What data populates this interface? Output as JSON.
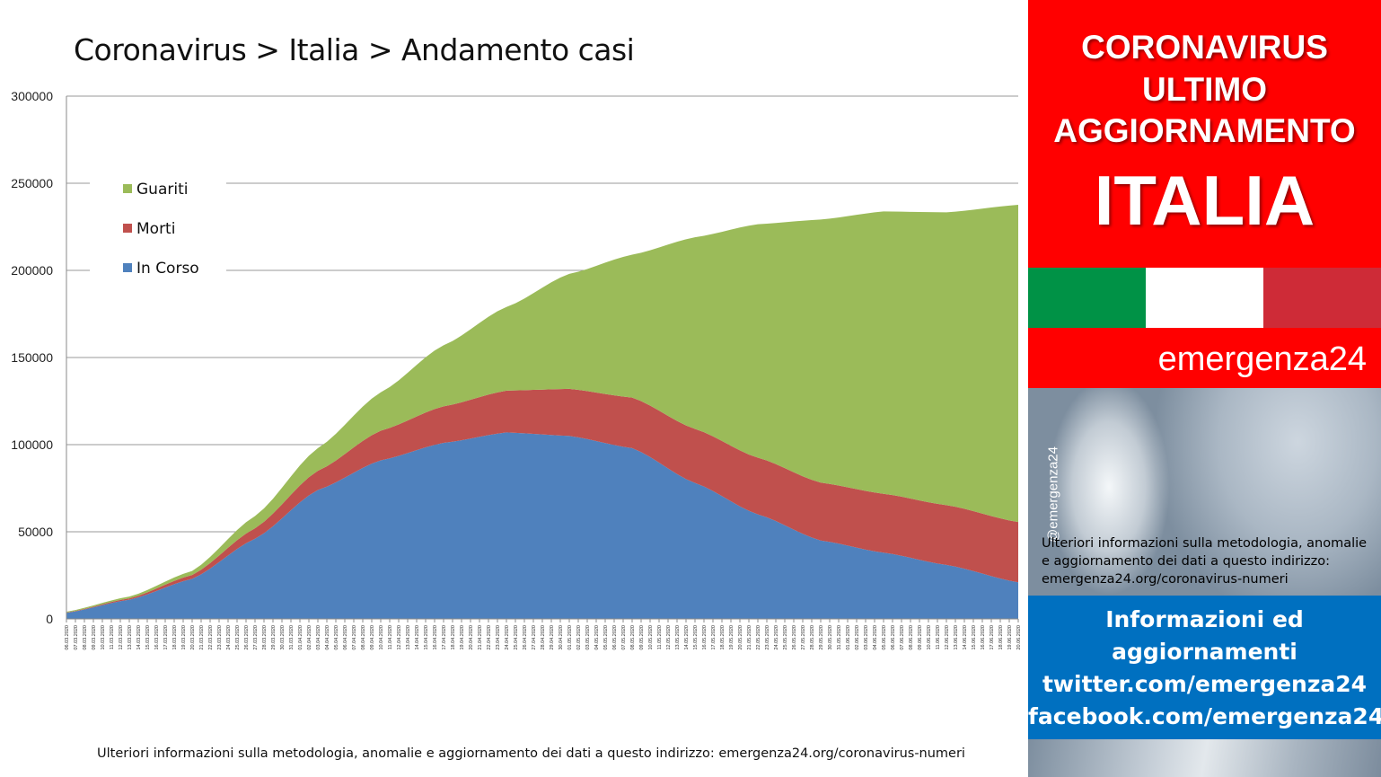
{
  "chart_title": "Coronavirus > Italia > Andamento casi",
  "footnote": "Ulteriori informazioni sulla metodologia, anomalie e aggiornamento dei dati a questo indirizzo: emergenza24.org/coronavirus-numeri",
  "panel": {
    "header_lines": [
      "CORONAVIRUS",
      "ULTIMO",
      "AGGIORNAMENTO",
      "ITALIA"
    ],
    "brand": "emergenza24",
    "handle": "@emergenza24",
    "photo_text": "Ulteriori informazioni sulla metodologia, anomalie e aggiornamento dei dati a questo indirizzo: emergenza24.org/coronavirus-numeri",
    "info_lines": [
      "Informazioni ed",
      "aggiornamenti",
      "twitter.com/emergenza24",
      "facebook.com/emergenza24"
    ],
    "flag_colors": [
      "#009246",
      "#ffffff",
      "#ce2b37"
    ],
    "header_color": "#ff0000",
    "info_color": "#0070c0"
  },
  "chart_data": {
    "type": "area",
    "stacked": true,
    "title": "Coronavirus > Italia > Andamento casi",
    "ylim": [
      0,
      300000
    ],
    "yticks": [
      0,
      50000,
      100000,
      150000,
      200000,
      250000,
      300000
    ],
    "grid": true,
    "legend_position": "top-left",
    "x_start": "06.03.2020",
    "x_end": "20.06.2020",
    "x_tick_labels": [
      "06.03.2020",
      "07.03.2020",
      "08.03.2020",
      "09.03.2020",
      "10.03.2020",
      "11.03.2020",
      "12.03.2020",
      "13.03.2020",
      "14.03.2020",
      "15.03.2020",
      "16.03.2020",
      "17.03.2020",
      "18.03.2020",
      "19.03.2020",
      "20.03.2020",
      "21.03.2020",
      "22.03.2020",
      "23.03.2020",
      "24.03.2020",
      "25.03.2020",
      "26.03.2020",
      "27.03.2020",
      "28.03.2020",
      "29.03.2020",
      "30.03.2020",
      "31.03.2020",
      "01.04.2020",
      "02.04.2020",
      "03.04.2020",
      "04.04.2020",
      "05.04.2020",
      "06.04.2020",
      "07.04.2020",
      "08.04.2020",
      "09.04.2020",
      "10.04.2020",
      "11.04.2020",
      "12.04.2020",
      "13.04.2020",
      "14.04.2020",
      "15.04.2020",
      "16.04.2020",
      "17.04.2020",
      "18.04.2020",
      "19.04.2020",
      "20.04.2020",
      "21.04.2020",
      "22.04.2020",
      "23.04.2020",
      "24.04.2020",
      "25.04.2020",
      "26.04.2020",
      "27.04.2020",
      "28.04.2020",
      "29.04.2020",
      "30.04.2020",
      "01.05.2020",
      "02.05.2020",
      "03.05.2020",
      "04.05.2020",
      "05.05.2020",
      "06.05.2020",
      "07.05.2020",
      "08.05.2020",
      "09.05.2020",
      "10.05.2020",
      "11.05.2020",
      "12.05.2020",
      "13.05.2020",
      "14.05.2020",
      "15.05.2020",
      "16.05.2020",
      "17.05.2020",
      "18.05.2020",
      "19.05.2020",
      "20.05.2020",
      "21.05.2020",
      "22.05.2020",
      "23.05.2020",
      "24.05.2020",
      "25.05.2020",
      "26.05.2020",
      "27.05.2020",
      "28.05.2020",
      "29.05.2020",
      "30.05.2020",
      "31.05.2020",
      "01.06.2020",
      "02.06.2020",
      "03.06.2020",
      "04.06.2020",
      "05.06.2020",
      "06.06.2020",
      "07.06.2020",
      "08.06.2020",
      "09.06.2020",
      "10.06.2020",
      "11.06.2020",
      "12.06.2020",
      "13.06.2020",
      "14.06.2020",
      "15.06.2020",
      "16.06.2020",
      "17.06.2020",
      "18.06.2020",
      "19.06.2020",
      "20.06.2020"
    ],
    "anchor_days": [
      0,
      7,
      14,
      21,
      28,
      35,
      42,
      49,
      56,
      63,
      70,
      77,
      84,
      91,
      98,
      106
    ],
    "series": [
      {
        "name": "In Corso",
        "color": "#4f81bd",
        "anchor_values": [
          3500,
          11000,
          23000,
          46000,
          74000,
          91000,
          101000,
          107000,
          105000,
          98000,
          78000,
          60000,
          45000,
          38000,
          31000,
          21000
        ]
      },
      {
        "name": "Morti",
        "color": "#c0504d",
        "anchor_values": [
          150,
          800,
          2200,
          6000,
          11000,
          17000,
          21000,
          24000,
          27000,
          29000,
          31000,
          32500,
          33200,
          33800,
          34300,
          34600
        ]
      },
      {
        "name": "Guariti",
        "color": "#9bbb59",
        "anchor_values": [
          500,
          1000,
          2300,
          7000,
          13000,
          22000,
          35000,
          48000,
          66000,
          82000,
          110000,
          134000,
          151000,
          162000,
          168000,
          182000
        ]
      }
    ]
  }
}
